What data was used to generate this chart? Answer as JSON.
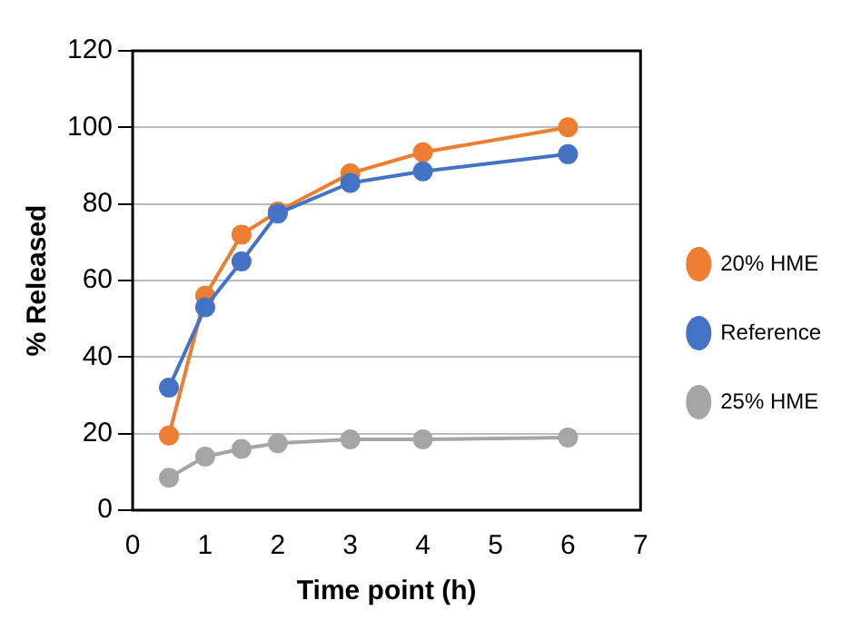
{
  "chart_data": {
    "type": "line",
    "xlabel": "Time point (h)",
    "ylabel": "% Released",
    "x": [
      0.5,
      1,
      1.5,
      2,
      3,
      4,
      6
    ],
    "xlim": [
      0,
      7
    ],
    "xticks": [
      0,
      1,
      2,
      3,
      4,
      5,
      6,
      7
    ],
    "ylim": [
      0,
      120
    ],
    "yticks": [
      0,
      20,
      40,
      60,
      80,
      100,
      120
    ],
    "grid": "y",
    "legend": "right",
    "marker": "circle",
    "line_style": "solid",
    "series": [
      {
        "name": "20% HME",
        "color": "#ed7d31",
        "values": [
          19.5,
          56,
          72,
          78,
          88,
          93.5,
          100
        ]
      },
      {
        "name": "Reference",
        "color": "#4472c4",
        "values": [
          32,
          53,
          65,
          77.5,
          85.5,
          88.5,
          93
        ]
      },
      {
        "name": "25% HME",
        "color": "#a5a5a5",
        "values": [
          8.5,
          14,
          16,
          17.5,
          18.5,
          18.5,
          19
        ]
      }
    ]
  }
}
